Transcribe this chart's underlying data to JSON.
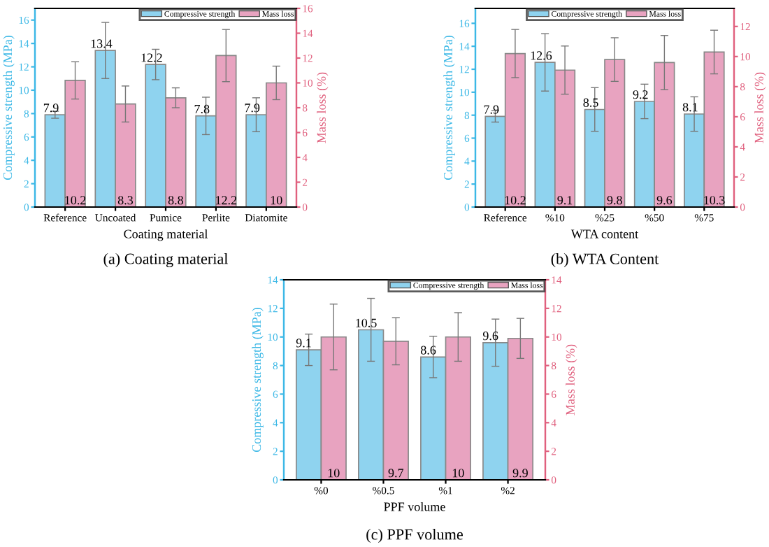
{
  "chart_data": [
    {
      "type": "bar",
      "title": null,
      "xlabel": "Coating material",
      "ylabel": "Compressive strength (MPa)",
      "y2label": "Mass loss (%)",
      "categories": [
        "Reference",
        "Uncoated",
        "Pumice",
        "Perlite",
        "Diatomite"
      ],
      "series": [
        {
          "name": "Compressive strength",
          "color": "#8fd3ef",
          "values": [
            7.9,
            13.4,
            12.2,
            7.8,
            7.9
          ],
          "errors": [
            0.3,
            2.4,
            1.3,
            1.6,
            1.45
          ]
        },
        {
          "name": "Mass loss",
          "color": "#e8a3c0",
          "axis": "y2",
          "values": [
            10.2,
            8.3,
            8.8,
            12.2,
            10
          ],
          "errors": [
            1.5,
            1.45,
            0.8,
            2.1,
            1.35
          ]
        }
      ],
      "ylim": [
        0,
        17
      ],
      "yticks": [
        0,
        2,
        4,
        6,
        8,
        10,
        12,
        14,
        16
      ],
      "y2lim": [
        0,
        16
      ],
      "y2ticks": [
        0,
        2,
        4,
        6,
        8,
        10,
        12,
        14,
        16
      ],
      "data_labels": true,
      "legend": "top right",
      "grid": false,
      "annotations": [
        "(a) Coating material"
      ]
    },
    {
      "type": "bar",
      "xlabel": "WTA content",
      "ylabel": "Compressive strength (MPa)",
      "y2label": "Mass loss (%)",
      "categories": [
        "Reference",
        "%10",
        "%25",
        "%50",
        "%75"
      ],
      "series": [
        {
          "name": "Compressive strength",
          "color": "#8fd3ef",
          "values": [
            7.9,
            12.6,
            8.5,
            9.2,
            8.1
          ],
          "errors": [
            0.5,
            2.5,
            1.9,
            1.5,
            1.5
          ]
        },
        {
          "name": "Mass loss",
          "color": "#e8a3c0",
          "axis": "y2",
          "values": [
            10.2,
            9.1,
            9.8,
            9.6,
            10.3
          ],
          "errors": [
            1.6,
            1.6,
            1.45,
            1.8,
            1.45
          ]
        }
      ],
      "ylim": [
        0,
        17.3
      ],
      "yticks": [
        0,
        2,
        4,
        6,
        8,
        10,
        12,
        14,
        16
      ],
      "y2lim": [
        0,
        13.2
      ],
      "y2ticks": [
        0,
        2,
        4,
        6,
        8,
        10,
        12
      ],
      "data_labels": true,
      "legend": "top",
      "grid": false,
      "annotations": [
        "(b) WTA Content"
      ]
    },
    {
      "type": "bar",
      "xlabel": "PPF volume",
      "ylabel": "Compressive strength (MPa)",
      "y2label": "Mass loss (%)",
      "categories": [
        "%0",
        "%0.5",
        "%1",
        "%2"
      ],
      "series": [
        {
          "name": "Compressive strength",
          "color": "#8fd3ef",
          "values": [
            9.1,
            10.5,
            8.6,
            9.6
          ],
          "errors": [
            1.1,
            2.2,
            1.45,
            1.65
          ]
        },
        {
          "name": "Mass loss",
          "color": "#e8a3c0",
          "axis": "y2",
          "values": [
            10,
            9.7,
            10,
            9.9
          ],
          "errors": [
            2.3,
            1.65,
            1.7,
            1.4
          ]
        }
      ],
      "ylim": [
        0,
        14
      ],
      "yticks": [
        0,
        2,
        4,
        6,
        8,
        10,
        12,
        14
      ],
      "y2lim": [
        0,
        14
      ],
      "y2ticks": [
        0,
        2,
        4,
        6,
        8,
        10,
        12,
        14
      ],
      "data_labels": true,
      "legend": "top right",
      "grid": false,
      "annotations": [
        "(c) PPF volume"
      ]
    }
  ]
}
